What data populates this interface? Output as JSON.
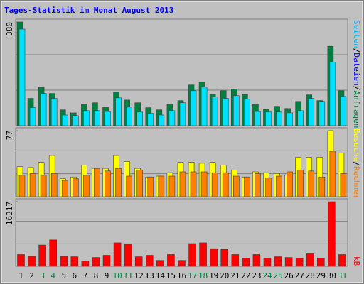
{
  "chart_data": [
    {
      "type": "bar",
      "title": "Tages-Statistik im Monat August 2013",
      "title_color": "#0000ff",
      "ylim": [
        0,
        380
      ],
      "yticks": [
        380
      ],
      "separator": "/",
      "legend": [
        {
          "text": "Seiten",
          "color": "#00c0ff"
        },
        {
          "text": "Dateien",
          "color": "#0000ff"
        },
        {
          "text": "Anfragen",
          "color": "#008040"
        }
      ],
      "series": [
        {
          "name": "Anfragen",
          "color": "#008040",
          "values": [
            380,
            100,
            141,
            118,
            58,
            47,
            79,
            84,
            68,
            123,
            94,
            84,
            66,
            58,
            79,
            92,
            149,
            160,
            115,
            128,
            134,
            115,
            79,
            60,
            71,
            63,
            89,
            113,
            92,
            291,
            128
          ]
        },
        {
          "name": "Dateien",
          "color": "#00e0ff",
          "values": [
            354,
            66,
            118,
            100,
            39,
            37,
            55,
            55,
            52,
            102,
            68,
            50,
            45,
            39,
            55,
            84,
            128,
            141,
            105,
            100,
            110,
            97,
            52,
            50,
            50,
            47,
            55,
            100,
            89,
            233,
            107
          ]
        }
      ]
    },
    {
      "type": "bar",
      "ylim": [
        0,
        77
      ],
      "yticks": [
        77
      ],
      "separator": "/",
      "legend": [
        {
          "text": "Besuche",
          "color": "#ffff00"
        },
        {
          "text": "Rechner",
          "color": "#ff8000"
        }
      ],
      "series": [
        {
          "name": "Besuche",
          "color": "#ffff00",
          "values": [
            35,
            34,
            40,
            48,
            21,
            23,
            37,
            33,
            33,
            48,
            41,
            33,
            23,
            24,
            28,
            40,
            40,
            39,
            40,
            37,
            31,
            23,
            29,
            28,
            27,
            25,
            46,
            46,
            46,
            77,
            51
          ]
        },
        {
          "name": "Rechner",
          "color": "#ff8000",
          "values": [
            25,
            27,
            25,
            27,
            19,
            21,
            25,
            33,
            30,
            33,
            24,
            31,
            23,
            24,
            24,
            29,
            29,
            29,
            28,
            28,
            24,
            23,
            27,
            22,
            24,
            29,
            31,
            30,
            23,
            53,
            27
          ]
        }
      ]
    },
    {
      "type": "bar",
      "ylim": [
        0,
        16317
      ],
      "yticks": [
        16317
      ],
      "separator": "/",
      "legend": [
        {
          "text": "kB",
          "color": "#ff0000"
        }
      ],
      "categories": [
        "1",
        "2",
        "3",
        "4",
        "5",
        "6",
        "7",
        "8",
        "9",
        "10",
        "11",
        "12",
        "13",
        "14",
        "15",
        "16",
        "17",
        "18",
        "19",
        "20",
        "21",
        "22",
        "23",
        "24",
        "25",
        "26",
        "27",
        "28",
        "29",
        "30",
        "31"
      ],
      "category_colors": [
        "#000000",
        "#000000",
        "#008040",
        "#008040",
        "#000000",
        "#000000",
        "#000000",
        "#000000",
        "#000000",
        "#008040",
        "#008040",
        "#000000",
        "#000000",
        "#000000",
        "#000000",
        "#000000",
        "#008040",
        "#008040",
        "#000000",
        "#000000",
        "#000000",
        "#000000",
        "#000000",
        "#008040",
        "#008040",
        "#000000",
        "#000000",
        "#000000",
        "#000000",
        "#000000",
        "#008040"
      ],
      "series": [
        {
          "name": "kB",
          "color": "#ff0000",
          "values": [
            2966,
            2596,
            5370,
            6668,
            2596,
            2410,
            1298,
            2225,
            2781,
            5927,
            5556,
            2410,
            2781,
            1483,
            2966,
            1483,
            5741,
            5927,
            4450,
            4265,
            2966,
            2039,
            2966,
            2039,
            2410,
            2225,
            2039,
            3152,
            2039,
            16317,
            2966
          ]
        }
      ]
    }
  ]
}
